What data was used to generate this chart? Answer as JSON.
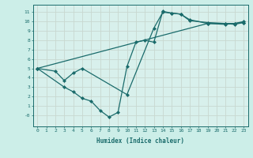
{
  "xlabel": "Humidex (Indice chaleur)",
  "bg_color": "#cceee8",
  "plot_bg_color": "#d8f0ec",
  "line_color": "#1a6b6b",
  "grid_color": "#c8d8d0",
  "marker": "D",
  "markersize": 2,
  "linewidth": 0.9,
  "xlim": [
    -0.5,
    23.5
  ],
  "ylim": [
    -1.2,
    11.8
  ],
  "xticks": [
    0,
    1,
    2,
    3,
    4,
    5,
    6,
    7,
    8,
    9,
    10,
    11,
    12,
    13,
    14,
    15,
    16,
    17,
    18,
    19,
    20,
    21,
    22,
    23
  ],
  "yticks": [
    0,
    1,
    2,
    3,
    4,
    5,
    6,
    7,
    8,
    9,
    10,
    11
  ],
  "ytick_labels": [
    "-0",
    "1",
    "2",
    "3",
    "4",
    "5",
    "6",
    "7",
    "8",
    "9",
    "10",
    "11"
  ],
  "series": [
    [
      [
        0,
        5.0
      ],
      [
        2,
        4.7
      ],
      [
        3,
        3.7
      ],
      [
        4,
        4.5
      ],
      [
        5,
        5.0
      ],
      [
        10,
        2.2
      ],
      [
        13,
        9.3
      ],
      [
        14,
        11.0
      ],
      [
        15,
        10.9
      ],
      [
        16,
        10.8
      ],
      [
        17,
        10.2
      ],
      [
        19,
        9.8
      ],
      [
        21,
        9.7
      ],
      [
        22,
        9.8
      ],
      [
        23,
        9.9
      ]
    ],
    [
      [
        0,
        5.0
      ],
      [
        3,
        3.0
      ],
      [
        4,
        2.5
      ],
      [
        5,
        1.8
      ],
      [
        6,
        1.5
      ],
      [
        7,
        0.5
      ],
      [
        8,
        -0.2
      ],
      [
        9,
        0.3
      ],
      [
        10,
        5.2
      ],
      [
        11,
        7.8
      ],
      [
        12,
        8.0
      ],
      [
        13,
        7.8
      ],
      [
        14,
        11.1
      ],
      [
        15,
        10.9
      ],
      [
        16,
        10.8
      ],
      [
        17,
        10.1
      ],
      [
        19,
        9.9
      ],
      [
        21,
        9.8
      ],
      [
        22,
        9.7
      ],
      [
        23,
        9.9
      ]
    ],
    [
      [
        0,
        5.0
      ],
      [
        19,
        9.8
      ],
      [
        21,
        9.8
      ],
      [
        22,
        9.8
      ],
      [
        23,
        10.0
      ]
    ]
  ]
}
